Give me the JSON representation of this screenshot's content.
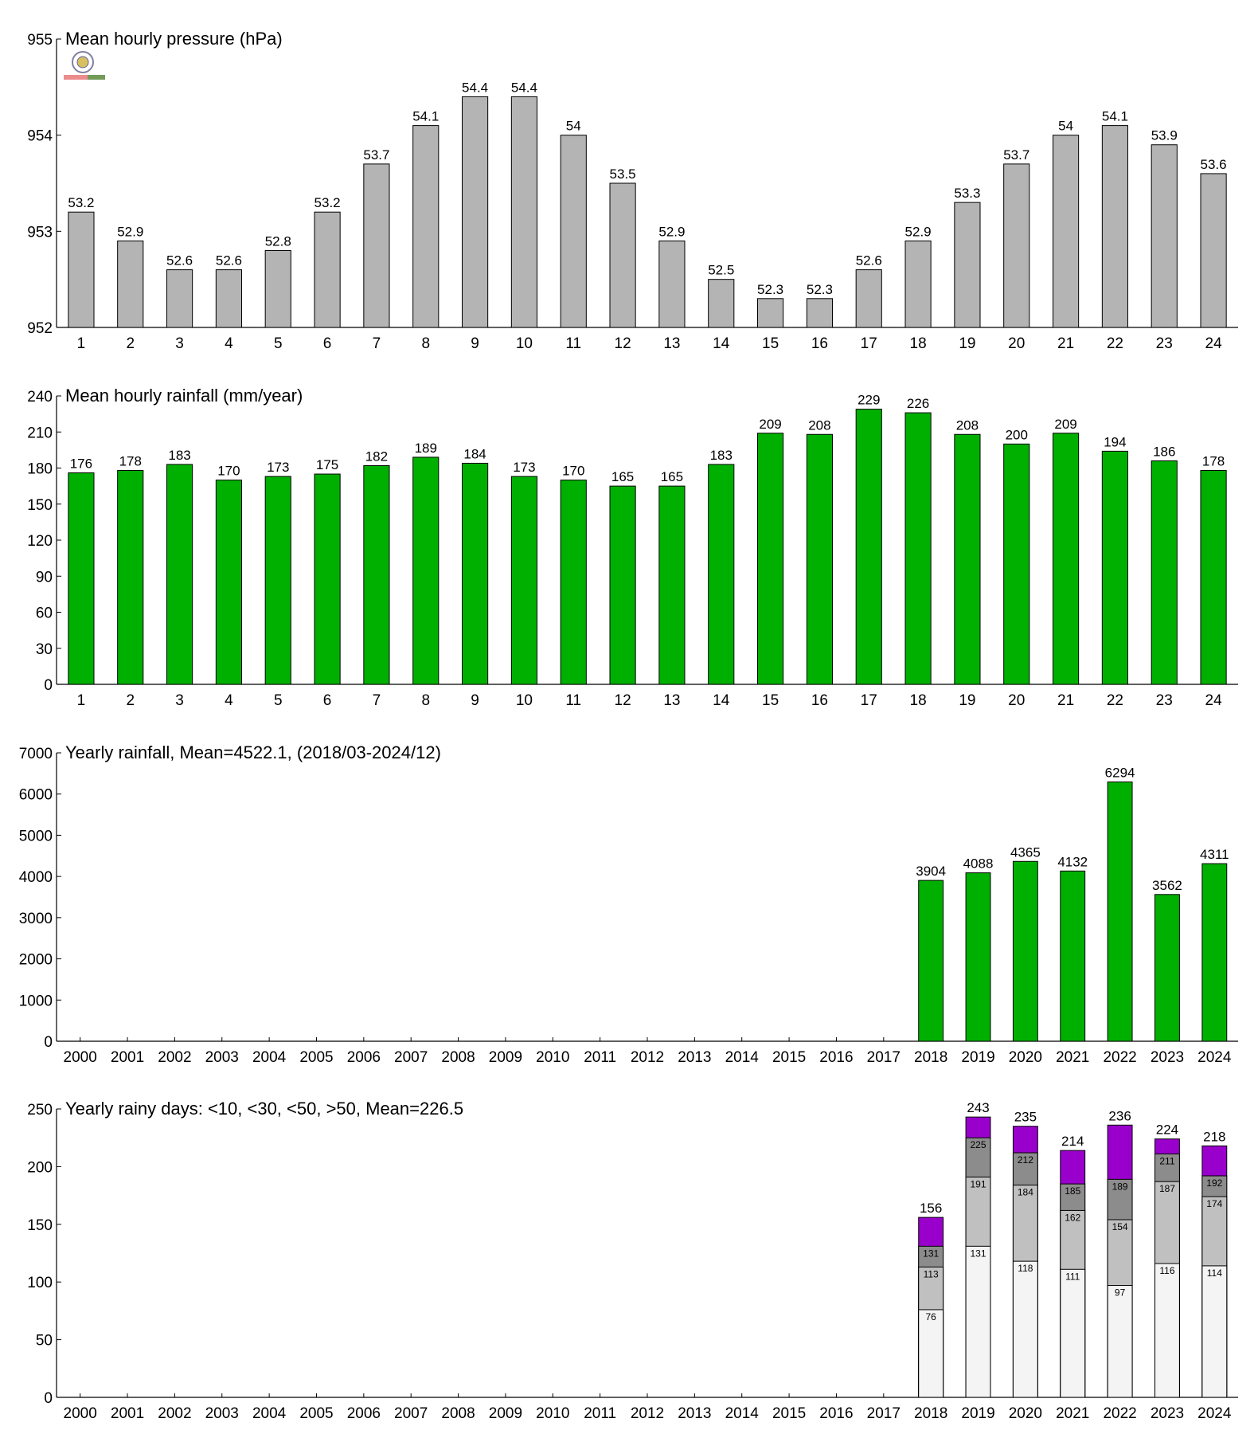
{
  "chart_data": [
    {
      "type": "bar",
      "title": "Mean hourly pressure (hPa)",
      "color": "#b4b4b4",
      "categories": [
        "1",
        "2",
        "3",
        "4",
        "5",
        "6",
        "7",
        "8",
        "9",
        "10",
        "11",
        "12",
        "13",
        "14",
        "15",
        "16",
        "17",
        "18",
        "19",
        "20",
        "21",
        "22",
        "23",
        "24"
      ],
      "values": [
        953.2,
        952.9,
        952.6,
        952.6,
        952.8,
        953.2,
        953.7,
        954.1,
        954.4,
        954.4,
        954.0,
        953.5,
        952.9,
        952.5,
        952.3,
        952.3,
        952.6,
        952.9,
        953.3,
        953.7,
        954.0,
        954.1,
        953.9,
        953.6
      ],
      "value_labels": [
        "53.2",
        "52.9",
        "52.6",
        "52.6",
        "52.8",
        "53.2",
        "53.7",
        "54.1",
        "54.4",
        "54.4",
        "54",
        "53.5",
        "52.9",
        "52.5",
        "52.3",
        "52.3",
        "52.6",
        "52.9",
        "53.3",
        "53.7",
        "54",
        "54.1",
        "53.9",
        "53.6"
      ],
      "ylim": [
        952,
        955
      ],
      "yticks": [
        952,
        953,
        954,
        955
      ]
    },
    {
      "type": "bar",
      "title": "Mean hourly rainfall (mm/year)",
      "color": "#00b000",
      "categories": [
        "1",
        "2",
        "3",
        "4",
        "5",
        "6",
        "7",
        "8",
        "9",
        "10",
        "11",
        "12",
        "13",
        "14",
        "15",
        "16",
        "17",
        "18",
        "19",
        "20",
        "21",
        "22",
        "23",
        "24"
      ],
      "values": [
        176,
        178,
        183,
        170,
        173,
        175,
        182,
        189,
        184,
        173,
        170,
        165,
        165,
        183,
        209,
        208,
        229,
        226,
        208,
        200,
        209,
        194,
        186,
        178
      ],
      "ylim": [
        0,
        240
      ],
      "yticks": [
        0,
        30,
        60,
        90,
        120,
        150,
        180,
        210,
        240
      ]
    },
    {
      "type": "bar",
      "title": "Yearly rainfall, Mean=4522.1, (2018/03-2024/12)",
      "color": "#00b000",
      "categories": [
        "2000",
        "2001",
        "2002",
        "2003",
        "2004",
        "2005",
        "2006",
        "2007",
        "2008",
        "2009",
        "2010",
        "2011",
        "2012",
        "2013",
        "2014",
        "2015",
        "2016",
        "2017",
        "2018",
        "2019",
        "2020",
        "2021",
        "2022",
        "2023",
        "2024"
      ],
      "values": [
        null,
        null,
        null,
        null,
        null,
        null,
        null,
        null,
        null,
        null,
        null,
        null,
        null,
        null,
        null,
        null,
        null,
        null,
        3904,
        4088,
        4365,
        4132,
        6294,
        3562,
        4311
      ],
      "ylim": [
        0,
        7000
      ],
      "yticks": [
        0,
        1000,
        2000,
        3000,
        4000,
        5000,
        6000,
        7000
      ]
    },
    {
      "type": "bar",
      "title": "Yearly rainy days: <10, <30, <50, >50, Mean=226.5",
      "categories": [
        "2000",
        "2001",
        "2002",
        "2003",
        "2004",
        "2005",
        "2006",
        "2007",
        "2008",
        "2009",
        "2010",
        "2011",
        "2012",
        "2013",
        "2014",
        "2015",
        "2016",
        "2017",
        "2018",
        "2019",
        "2020",
        "2021",
        "2022",
        "2023",
        "2024"
      ],
      "series": [
        {
          "color": "#9900cc",
          "values": [
            null,
            null,
            null,
            null,
            null,
            null,
            null,
            null,
            null,
            null,
            null,
            null,
            null,
            null,
            null,
            null,
            null,
            null,
            156,
            243,
            235,
            214,
            236,
            224,
            218
          ]
        },
        {
          "color": "#8c8c8c",
          "values": [
            null,
            null,
            null,
            null,
            null,
            null,
            null,
            null,
            null,
            null,
            null,
            null,
            null,
            null,
            null,
            null,
            null,
            null,
            131,
            225,
            212,
            185,
            189,
            211,
            192
          ]
        },
        {
          "color": "#c0c0c0",
          "values": [
            null,
            null,
            null,
            null,
            null,
            null,
            null,
            null,
            null,
            null,
            null,
            null,
            null,
            null,
            null,
            null,
            null,
            null,
            113,
            191,
            184,
            162,
            154,
            187,
            174
          ]
        },
        {
          "color": "#f4f4f4",
          "values": [
            null,
            null,
            null,
            null,
            null,
            null,
            null,
            null,
            null,
            null,
            null,
            null,
            null,
            null,
            null,
            null,
            null,
            null,
            76,
            131,
            118,
            111,
            97,
            116,
            114
          ]
        }
      ],
      "ylim": [
        0,
        250
      ],
      "yticks": [
        0,
        50,
        100,
        150,
        200,
        250
      ]
    }
  ]
}
